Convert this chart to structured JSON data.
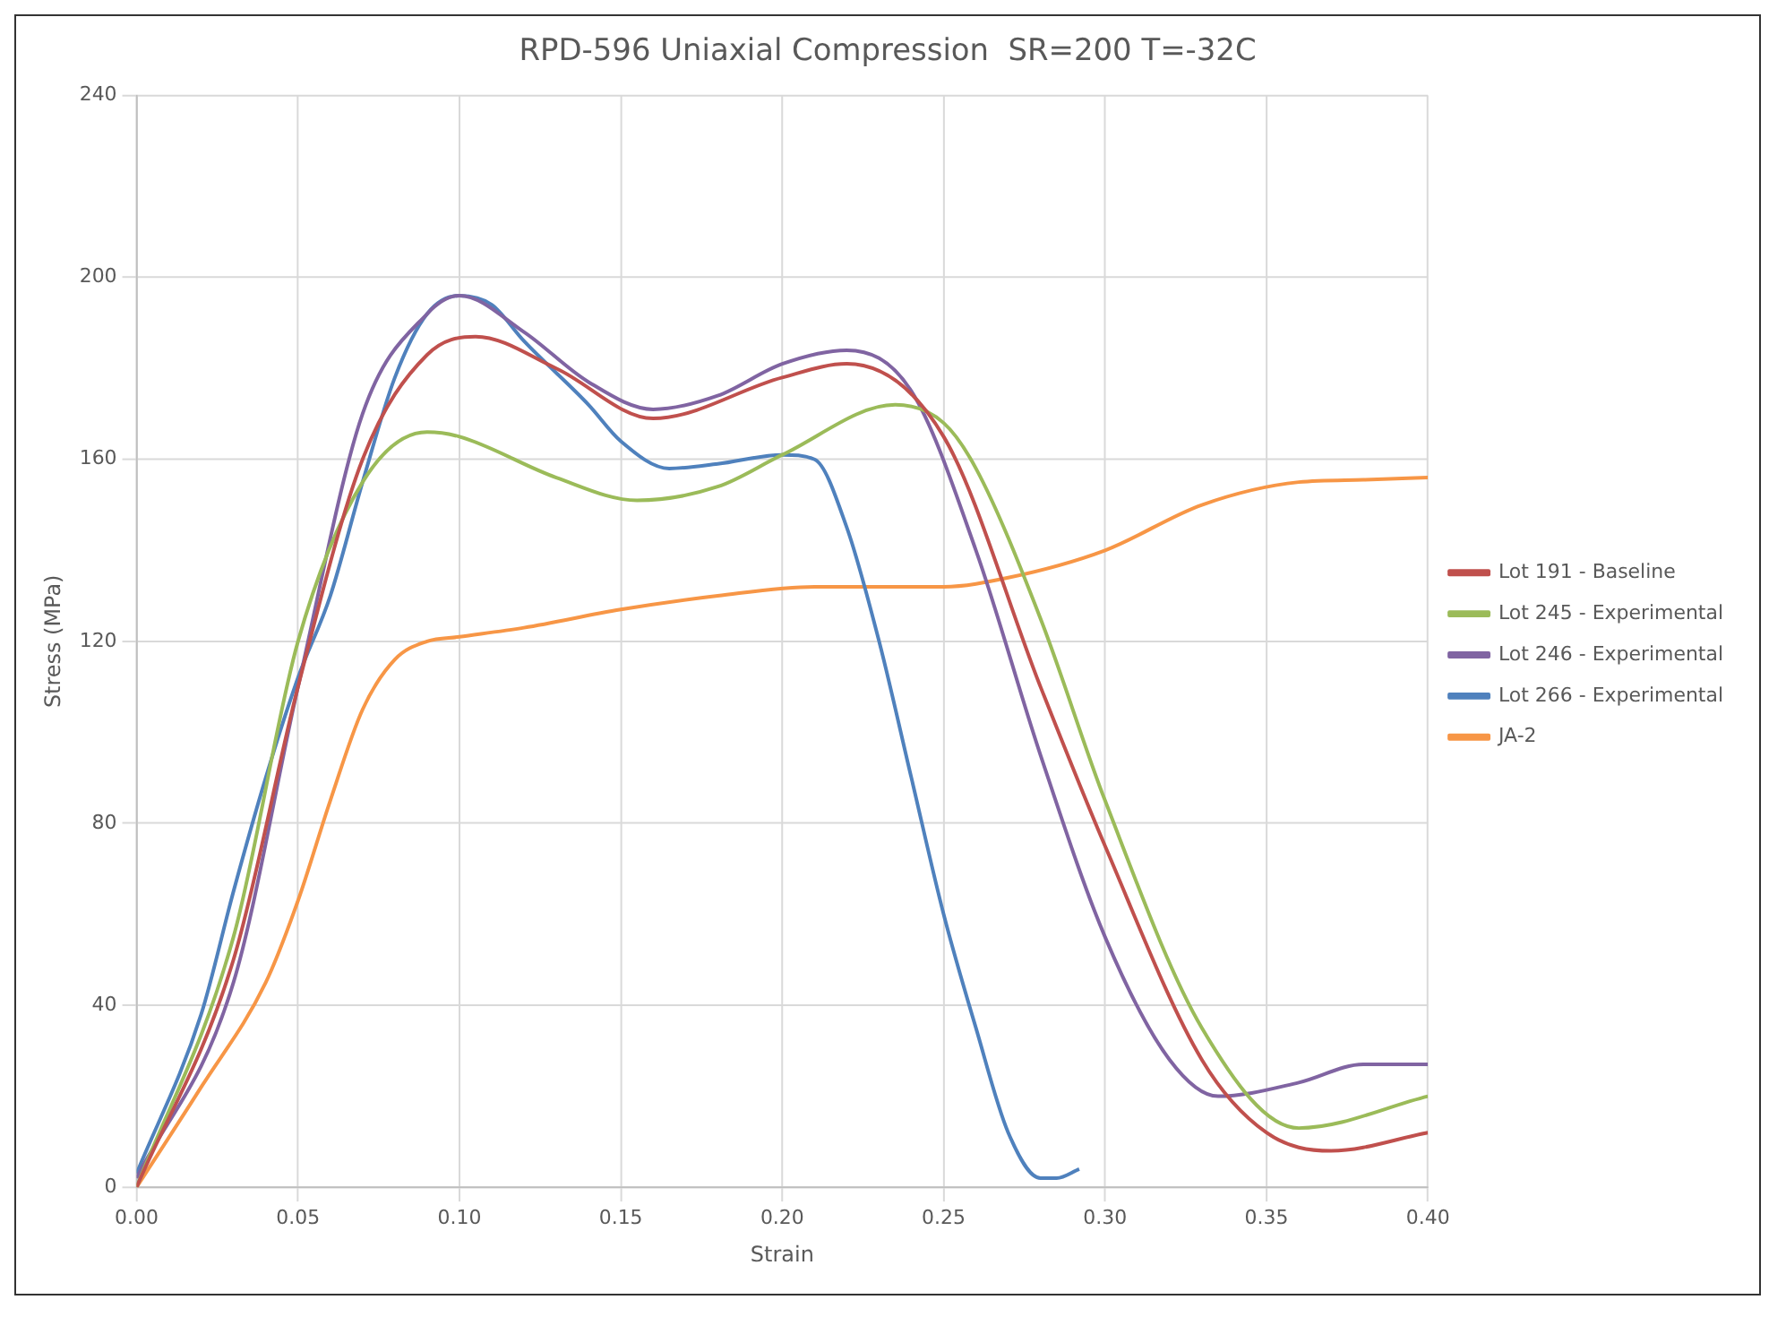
{
  "chart_data": {
    "type": "line",
    "title": "RPD-596 Uniaxial Compression  SR=200 T=-32C",
    "xlabel": "Strain",
    "ylabel": "Stress (MPa)",
    "xlim": [
      0,
      0.4
    ],
    "xticks": [
      {
        "value": 0,
        "label": "0.00"
      },
      {
        "value": 0.05,
        "label": "0.05"
      },
      {
        "value": 0.1,
        "label": "0.10"
      },
      {
        "value": 0.15,
        "label": "0.15"
      },
      {
        "value": 0.2,
        "label": "0.20"
      },
      {
        "value": 0.25,
        "label": "0.25"
      },
      {
        "value": 0.3,
        "label": "0.30"
      },
      {
        "value": 0.35,
        "label": "0.35"
      },
      {
        "value": 0.4,
        "label": "0.40"
      }
    ],
    "ylim": [
      0,
      240
    ],
    "yticks": [
      0,
      40,
      80,
      120,
      160,
      200,
      240
    ],
    "grid": true,
    "legend": "right",
    "marker": "none",
    "line_style": "solid",
    "series": [
      {
        "name": "Lot 191 - Baseline",
        "color": "#c0504d",
        "x": [
          0,
          0.03,
          0.05,
          0.07,
          0.09,
          0.105,
          0.13,
          0.16,
          0.2,
          0.22,
          0.25,
          0.28,
          0.3,
          0.33,
          0.35,
          0.37,
          0.4
        ],
        "values": [
          0,
          50,
          110,
          160,
          183,
          187,
          180,
          169,
          178,
          181,
          165,
          110,
          75,
          28,
          12,
          8,
          12
        ]
      },
      {
        "name": "Lot 245 - Experimental",
        "color": "#9bbb59",
        "x": [
          0,
          0.03,
          0.05,
          0.07,
          0.09,
          0.1,
          0.13,
          0.155,
          0.18,
          0.2,
          0.235,
          0.25,
          0.26,
          0.28,
          0.3,
          0.33,
          0.36,
          0.4
        ],
        "values": [
          0,
          55,
          120,
          155,
          166,
          165,
          156,
          151,
          154,
          161,
          172,
          168,
          158,
          125,
          85,
          35,
          13,
          20
        ]
      },
      {
        "name": "Lot 246 - Experimental",
        "color": "#8064a2",
        "x": [
          0,
          0.03,
          0.05,
          0.07,
          0.09,
          0.1,
          0.12,
          0.14,
          0.16,
          0.18,
          0.2,
          0.22,
          0.24,
          0.26,
          0.28,
          0.3,
          0.32,
          0.335,
          0.36,
          0.38,
          0.4
        ],
        "values": [
          2,
          45,
          110,
          170,
          192,
          196,
          188,
          177,
          171,
          174,
          181,
          184,
          175,
          140,
          95,
          55,
          28,
          20,
          23,
          27,
          27
        ]
      },
      {
        "name": "Lot 266 - Experimental",
        "color": "#4f81bd",
        "x": [
          0,
          0.02,
          0.03,
          0.04,
          0.05,
          0.06,
          0.07,
          0.08,
          0.09,
          0.1,
          0.11,
          0.12,
          0.14,
          0.15,
          0.165,
          0.18,
          0.2,
          0.21,
          0.22,
          0.23,
          0.24,
          0.25,
          0.26,
          0.27,
          0.28,
          0.285,
          0.292
        ],
        "values": [
          3,
          38,
          65,
          90,
          112,
          130,
          155,
          178,
          192,
          196,
          194,
          186,
          172,
          164,
          158,
          159,
          161,
          160,
          145,
          120,
          90,
          60,
          35,
          12,
          2,
          2,
          4
        ]
      },
      {
        "name": "JA-2",
        "color": "#f79646",
        "x": [
          0,
          0.02,
          0.04,
          0.05,
          0.06,
          0.07,
          0.08,
          0.09,
          0.1,
          0.12,
          0.15,
          0.18,
          0.21,
          0.25,
          0.27,
          0.3,
          0.33,
          0.36,
          0.38,
          0.4
        ],
        "values": [
          0,
          22,
          45,
          63,
          85,
          105,
          116,
          120,
          121,
          123,
          127,
          130,
          132,
          132,
          134,
          140,
          150,
          155,
          155.5,
          156
        ]
      }
    ]
  }
}
